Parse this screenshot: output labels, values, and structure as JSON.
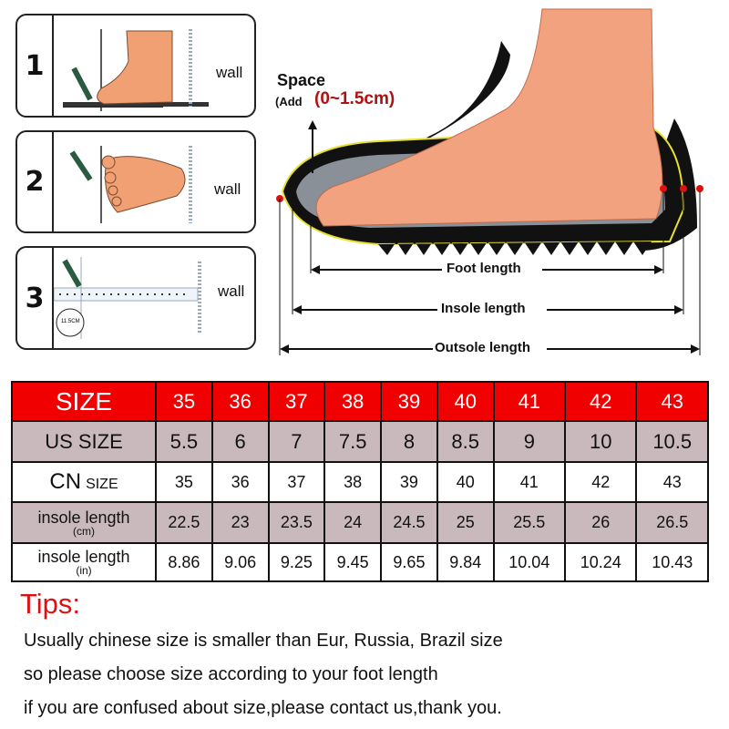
{
  "steps": [
    {
      "number": "1",
      "wall_label": "wall"
    },
    {
      "number": "2",
      "wall_label": "wall"
    },
    {
      "number": "3",
      "wall_label": "wall",
      "ruler_label": "11.5CM"
    }
  ],
  "diagram": {
    "space_label": "Space",
    "add_prefix": "(Add",
    "add_value": "(0~1.5cm)",
    "foot_length": "Foot length",
    "insole_length": "Insole length",
    "outsole_length": "Outsole length"
  },
  "size_table": {
    "rows": [
      {
        "label": "SIZE",
        "values": [
          "35",
          "36",
          "37",
          "38",
          "39",
          "40",
          "41",
          "42",
          "43"
        ]
      },
      {
        "label": "US SIZE",
        "values": [
          "5.5",
          "6",
          "7",
          "7.5",
          "8",
          "8.5",
          "9",
          "10",
          "10.5"
        ]
      },
      {
        "label": "CN",
        "label_suffix": "SIZE",
        "values": [
          "35",
          "36",
          "37",
          "38",
          "39",
          "40",
          "41",
          "42",
          "43"
        ]
      },
      {
        "label": "insole length",
        "unit": "(cm)",
        "values": [
          "22.5",
          "23",
          "23.5",
          "24",
          "24.5",
          "25",
          "25.5",
          "26",
          "26.5"
        ]
      },
      {
        "label": "insole length",
        "unit": "(in)",
        "values": [
          "8.86",
          "9.06",
          "9.25",
          "9.45",
          "9.65",
          "9.84",
          "10.04",
          "10.24",
          "10.43"
        ]
      }
    ],
    "colors": {
      "header": "#f00000",
      "shaded": "#c9b9bc"
    }
  },
  "tips": {
    "title": "Tips:",
    "lines": [
      "Usually chinese size is smaller than Eur, Russia, Brazil size",
      "so please choose size according to your foot length",
      "if you are confused about size,please contact us,thank you."
    ]
  }
}
